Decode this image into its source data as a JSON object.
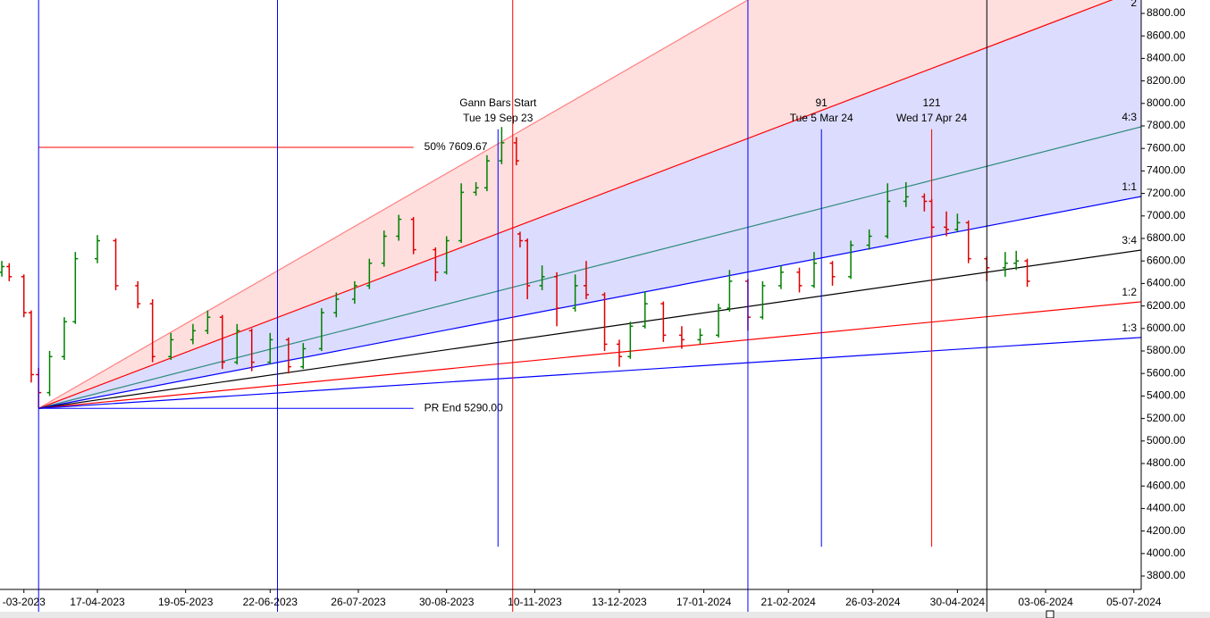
{
  "chart_data": {
    "type": "ohlc",
    "up_color": "#008000",
    "down_color": "#e00000",
    "xlim": [
      -10.5,
      300
    ],
    "ylim": [
      3681,
      8919
    ],
    "xticks": [
      {
        "value": -4,
        "label": "-03-2023"
      },
      {
        "value": 16,
        "label": "17-04-2023"
      },
      {
        "value": 40,
        "label": "19-05-2023"
      },
      {
        "value": 63,
        "label": "22-06-2023"
      },
      {
        "value": 87,
        "label": "26-07-2023"
      },
      {
        "value": 111,
        "label": "30-08-2023"
      },
      {
        "value": 135,
        "label": "10-11-2023"
      },
      {
        "value": 158,
        "label": "13-12-2023"
      },
      {
        "value": 181,
        "label": "17-01-2024"
      },
      {
        "value": 204,
        "label": "21-02-2024"
      },
      {
        "value": 227,
        "label": "26-03-2024"
      },
      {
        "value": 250,
        "label": "30-04-2024"
      },
      {
        "value": 274,
        "label": "03-06-2024"
      },
      {
        "value": 298,
        "label": "05-07-2024"
      }
    ],
    "yticks": [
      {
        "value": 3800,
        "label": "3800.00"
      },
      {
        "value": 4000,
        "label": "4000.00"
      },
      {
        "value": 4200,
        "label": "4200.00"
      },
      {
        "value": 4400,
        "label": "4400.00"
      },
      {
        "value": 4600,
        "label": "4600.00"
      },
      {
        "value": 4800,
        "label": "4800.00"
      },
      {
        "value": 5000,
        "label": "5000.00"
      },
      {
        "value": 5200,
        "label": "5200.00"
      },
      {
        "value": 5400,
        "label": "5400.00"
      },
      {
        "value": 5600,
        "label": "5600.00"
      },
      {
        "value": 5800,
        "label": "5800.00"
      },
      {
        "value": 6000,
        "label": "6000.00"
      },
      {
        "value": 6200,
        "label": "6200.00"
      },
      {
        "value": 6400,
        "label": "6400.00"
      },
      {
        "value": 6600,
        "label": "6600.00"
      },
      {
        "value": 6800,
        "label": "6800.00"
      },
      {
        "value": 7000,
        "label": "7000.00"
      },
      {
        "value": 7200,
        "label": "7200.00"
      },
      {
        "value": 7400,
        "label": "7400.00"
      },
      {
        "value": 7600,
        "label": "7600.00"
      },
      {
        "value": 7800,
        "label": "7800.00"
      },
      {
        "value": 8000,
        "label": "8000.00"
      },
      {
        "value": 8200,
        "label": "8200.00"
      },
      {
        "value": 8400,
        "label": "8400.00"
      },
      {
        "value": 8600,
        "label": "8600.00"
      },
      {
        "value": 8800,
        "label": "8800.00"
      }
    ],
    "bars": [
      [
        -10,
        6500,
        6600,
        6460,
        6550
      ],
      [
        -8,
        6550,
        6580,
        6420,
        6460
      ],
      [
        -4,
        6460,
        6480,
        6100,
        6140
      ],
      [
        -2,
        6140,
        6160,
        5520,
        5590
      ],
      [
        0,
        5590,
        5650,
        5290,
        5430
      ],
      [
        3,
        5430,
        5800,
        5400,
        5750
      ],
      [
        7,
        5750,
        6100,
        5720,
        6060
      ],
      [
        10,
        6060,
        6680,
        6040,
        6620
      ],
      [
        16,
        6620,
        6830,
        6580,
        6780
      ],
      [
        21,
        6780,
        6800,
        6340,
        6380
      ],
      [
        27,
        6380,
        6420,
        6180,
        6220
      ],
      [
        31,
        6220,
        6260,
        5700,
        5750
      ],
      [
        36,
        5750,
        5960,
        5720,
        5900
      ],
      [
        42,
        5900,
        6040,
        5860,
        5980
      ],
      [
        46,
        5980,
        6160,
        5950,
        6100
      ],
      [
        50,
        6100,
        6120,
        5640,
        5700
      ],
      [
        54,
        5700,
        6040,
        5680,
        5980
      ],
      [
        58,
        5980,
        6000,
        5620,
        5700
      ],
      [
        63,
        5700,
        5960,
        5680,
        5900
      ],
      [
        68,
        5900,
        5920,
        5600,
        5660
      ],
      [
        72,
        5660,
        5870,
        5640,
        5820
      ],
      [
        77,
        5820,
        6180,
        5800,
        6140
      ],
      [
        81,
        6140,
        6320,
        6100,
        6260
      ],
      [
        86,
        6260,
        6420,
        6220,
        6380
      ],
      [
        90,
        6380,
        6620,
        6350,
        6580
      ],
      [
        94,
        6580,
        6870,
        6550,
        6820
      ],
      [
        98,
        6820,
        7010,
        6780,
        6970
      ],
      [
        102,
        6970,
        6990,
        6660,
        6700
      ],
      [
        108,
        6700,
        6720,
        6420,
        6500
      ],
      [
        111,
        6500,
        6820,
        6480,
        6780
      ],
      [
        115,
        6780,
        7290,
        6760,
        7210
      ],
      [
        119,
        7210,
        7300,
        7180,
        7250
      ],
      [
        122,
        7250,
        7540,
        7220,
        7490
      ],
      [
        126,
        7490,
        7790,
        7460,
        7650
      ],
      [
        130,
        7650,
        7700,
        7450,
        7490
      ],
      [
        131,
        6840,
        6860,
        6720,
        6780
      ],
      [
        133,
        6780,
        6800,
        6260,
        6380
      ],
      [
        137,
        6380,
        6560,
        6340,
        6460
      ],
      [
        141,
        6460,
        6500,
        6020,
        6180
      ],
      [
        146,
        6180,
        6480,
        6150,
        6380
      ],
      [
        149,
        6380,
        6600,
        6260,
        6300
      ],
      [
        154,
        6300,
        6320,
        5800,
        5860
      ],
      [
        158,
        5860,
        5900,
        5660,
        5750
      ],
      [
        161,
        5750,
        6060,
        5730,
        6020
      ],
      [
        165,
        6020,
        6330,
        6000,
        6220
      ],
      [
        170,
        6220,
        6240,
        5880,
        5940
      ],
      [
        175,
        5940,
        6020,
        5820,
        5900
      ],
      [
        180,
        5900,
        6000,
        5860,
        5940
      ],
      [
        185,
        5940,
        6220,
        5920,
        6180
      ],
      [
        188,
        6180,
        6520,
        6150,
        6420
      ],
      [
        193,
        6420,
        6440,
        5980,
        6100
      ],
      [
        197,
        6100,
        6420,
        6080,
        6380
      ],
      [
        202,
        6380,
        6560,
        6350,
        6500
      ],
      [
        207,
        6500,
        6540,
        6320,
        6380
      ],
      [
        211,
        6380,
        6680,
        6360,
        6580
      ],
      [
        216,
        6580,
        6600,
        6380,
        6460
      ],
      [
        221,
        6460,
        6780,
        6440,
        6740
      ],
      [
        226,
        6740,
        6880,
        6700,
        6820
      ],
      [
        231,
        6820,
        7290,
        6800,
        7130
      ],
      [
        236,
        7130,
        7300,
        7080,
        7170
      ],
      [
        241,
        7170,
        7200,
        7040,
        7130
      ],
      [
        243,
        7130,
        7150,
        6800,
        6900
      ],
      [
        247,
        6900,
        7040,
        6820,
        6880
      ],
      [
        250,
        6880,
        7020,
        6860,
        6940
      ],
      [
        253,
        6940,
        6960,
        6580,
        6620
      ],
      [
        258,
        6620,
        6640,
        6420,
        6540
      ],
      [
        263,
        6540,
        6680,
        6460,
        6580
      ],
      [
        266,
        6580,
        6690,
        6520,
        6600
      ],
      [
        269,
        6600,
        6620,
        6370,
        6420
      ]
    ],
    "pivot": {
      "x": 0,
      "value": 5290
    },
    "fan": [
      {
        "end": 10932,
        "color": "#ff8080"
      },
      {
        "label": "2",
        "end": 9019,
        "color": "#ff0000"
      },
      {
        "label": "4:3",
        "end": 7792,
        "color": "#2e8b7a"
      },
      {
        "label": "1:1",
        "end": 7173,
        "color": "#0000ff"
      },
      {
        "label": "3:4",
        "end": 6697,
        "color": "#000000"
      },
      {
        "label": "1:2",
        "end": 6237,
        "color": "#ff0000"
      },
      {
        "label": "1:3",
        "end": 5920,
        "color": "#0000ff"
      }
    ],
    "shading": [
      {
        "between": [
          0,
          1
        ],
        "color": "#ffdede"
      },
      {
        "between": [
          1,
          3
        ],
        "color": "#dcdcff"
      }
    ],
    "vlines": [
      {
        "x": 0,
        "color": "#0000ff"
      },
      {
        "x": 65,
        "color": "#0000ff"
      },
      {
        "x": 129,
        "color": "#ff0000"
      },
      {
        "x": 193,
        "color": "#0000ff"
      },
      {
        "x": 258,
        "color": "#000000"
      },
      {
        "x": 125,
        "color": "#0000ff",
        "range": [
          4060,
          7770
        ]
      },
      {
        "x": 213,
        "color": "#0000ff",
        "range": [
          4060,
          7770
        ]
      },
      {
        "x": 243,
        "color": "#ff0000",
        "range": [
          4060,
          7770
        ]
      }
    ],
    "hlines": [
      {
        "label": "50% 7609.67",
        "value": 7609.67,
        "x_end": 102,
        "color": "#ff0000"
      },
      {
        "label": "PR End 5290.00",
        "value": 5290,
        "x_end": 102,
        "color": "#0000ff"
      }
    ],
    "annotations": [
      {
        "x": 125,
        "lines": [
          "Gann Bars Start",
          "Tue 19 Sep 23"
        ]
      },
      {
        "x": 213,
        "lines": [
          "91",
          "Tue 5 Mar 24"
        ]
      },
      {
        "x": 243,
        "lines": [
          "121",
          "Wed 17 Apr 24"
        ]
      }
    ]
  }
}
